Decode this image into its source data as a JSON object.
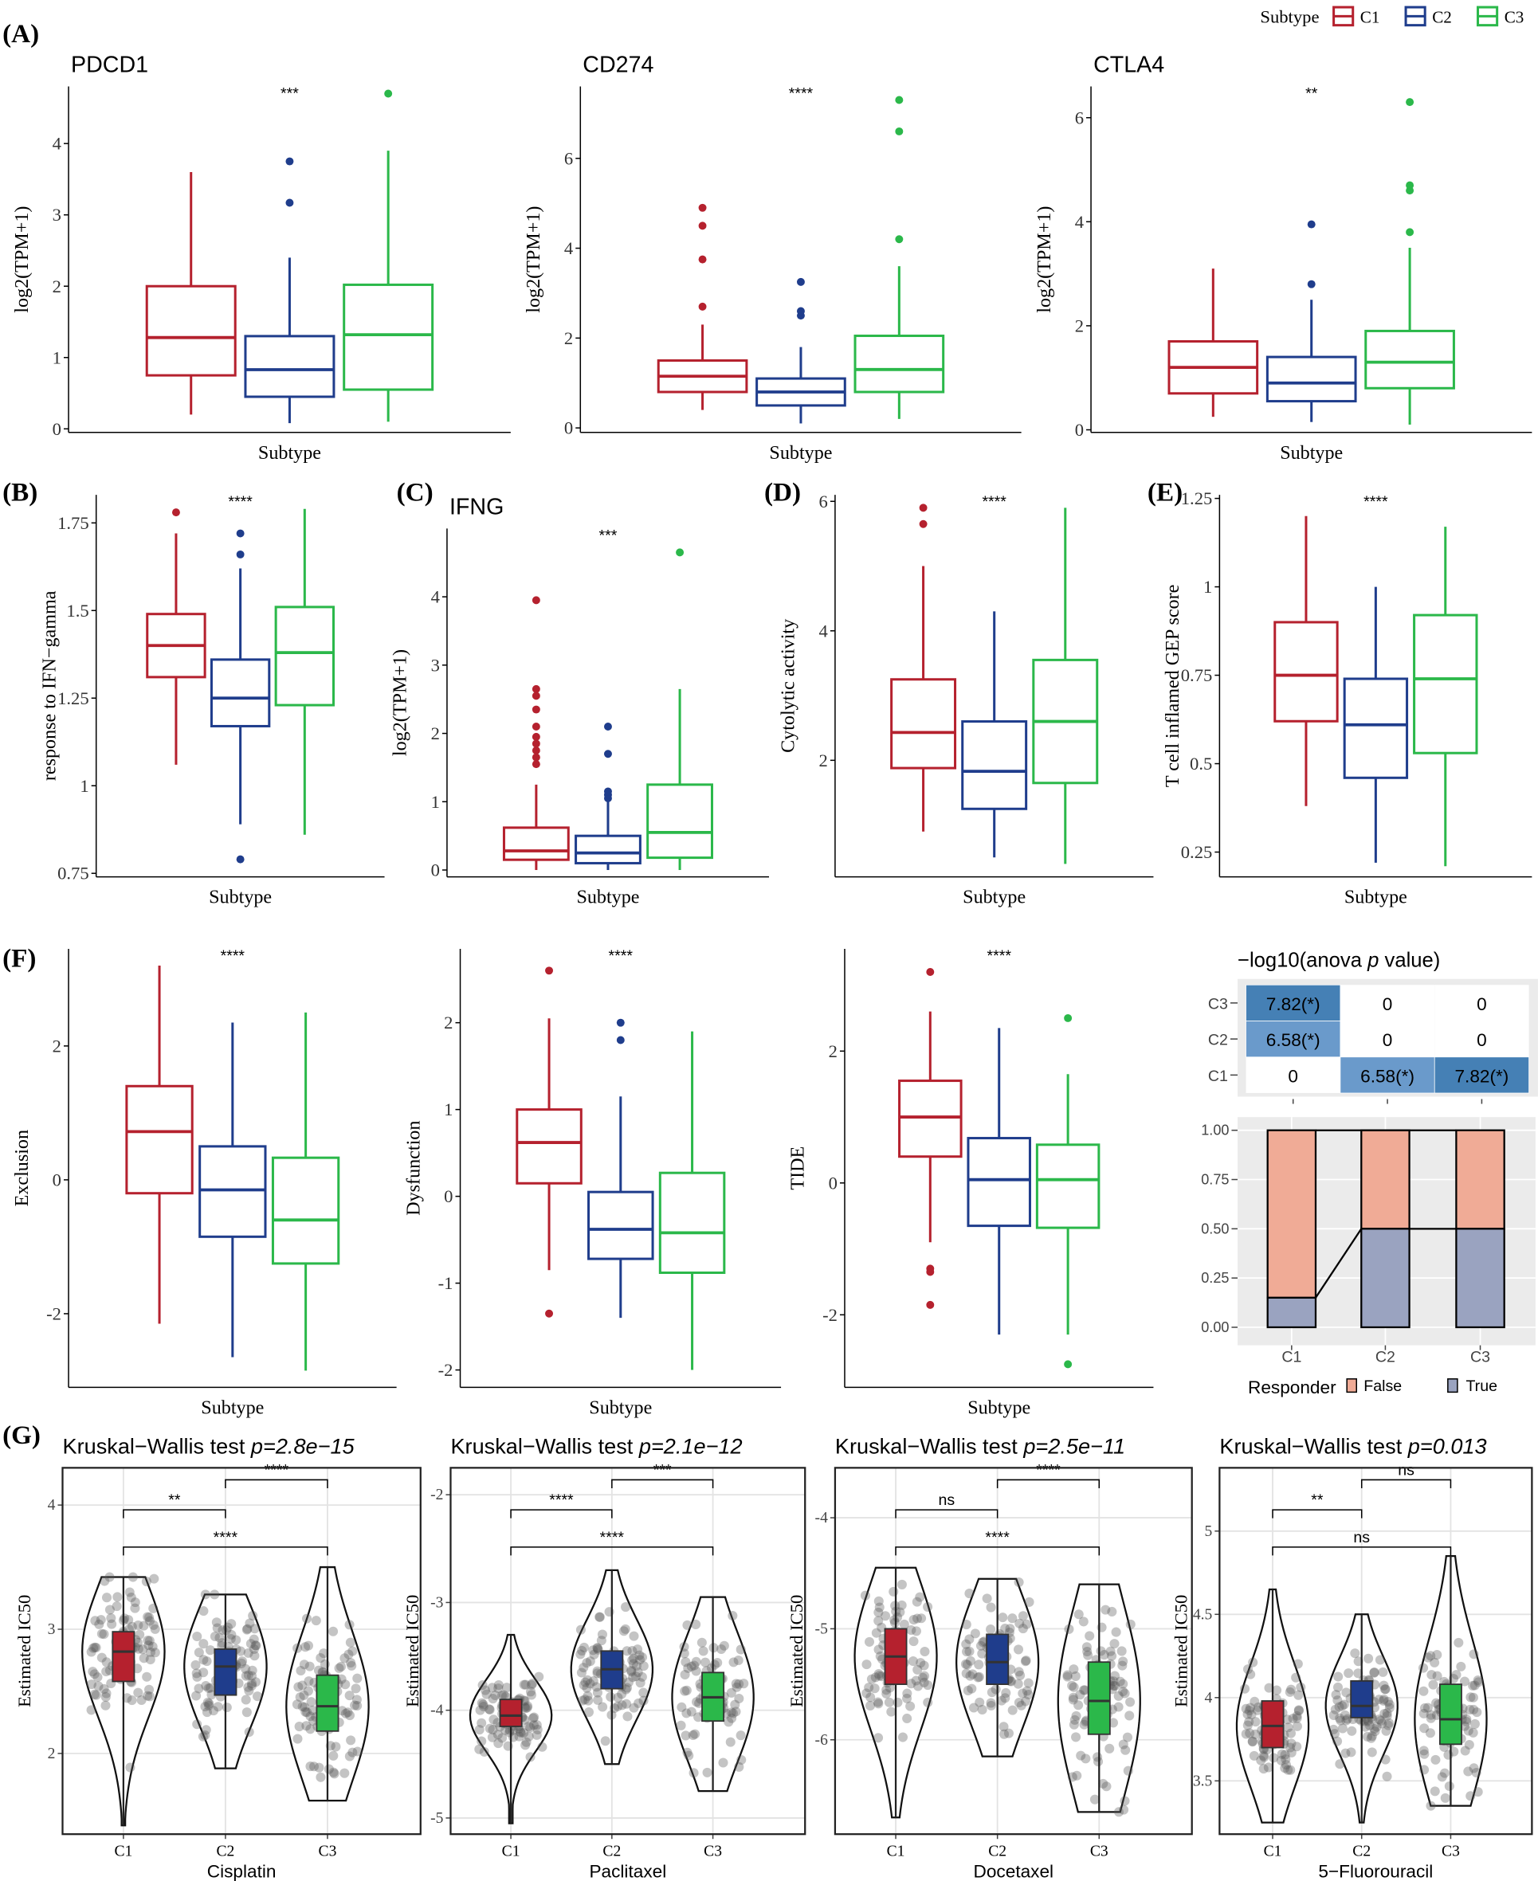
{
  "legend": {
    "title": "Subtype",
    "items": [
      "C1",
      "C2",
      "C3"
    ]
  },
  "colors": {
    "C1": "#b5212e",
    "C2": "#1f3d8c",
    "C3": "#2bb84a",
    "false": "#f0ab96",
    "true": "#9aa3c0",
    "heat_high": "#4580b5",
    "heat_mid": "#6a9acb"
  },
  "panel_labels": [
    "(A)",
    "(B)",
    "(C)",
    "(D)",
    "(E)",
    "(F)",
    "(G)"
  ],
  "chart_data": [
    {
      "id": "pdcd1",
      "type": "box",
      "title": "PDCD1",
      "xlabel": "Subtype",
      "ylabel": "log2(TPM+1)",
      "sig": "***",
      "ylim": [
        -0.05,
        4.8
      ],
      "ticks": [
        0,
        1,
        2,
        3,
        4
      ],
      "groups": [
        {
          "name": "C1",
          "lo": 0.2,
          "q1": 0.75,
          "med": 1.28,
          "q3": 2.0,
          "hi": 3.6,
          "out": []
        },
        {
          "name": "C2",
          "lo": 0.08,
          "q1": 0.45,
          "med": 0.83,
          "q3": 1.3,
          "hi": 2.4,
          "out": [
            3.17,
            3.75
          ]
        },
        {
          "name": "C3",
          "lo": 0.1,
          "q1": 0.55,
          "med": 1.32,
          "q3": 2.02,
          "hi": 3.9,
          "out": [
            4.7
          ]
        }
      ]
    },
    {
      "id": "cd274",
      "type": "box",
      "title": "CD274",
      "xlabel": "Subtype",
      "ylabel": "log2(TPM+1)",
      "sig": "****",
      "ylim": [
        -0.1,
        7.6
      ],
      "ticks": [
        0,
        2,
        4,
        6
      ],
      "groups": [
        {
          "name": "C1",
          "lo": 0.4,
          "q1": 0.8,
          "med": 1.15,
          "q3": 1.5,
          "hi": 2.3,
          "out": [
            2.7,
            3.75,
            4.5,
            4.9
          ]
        },
        {
          "name": "C2",
          "lo": 0.1,
          "q1": 0.5,
          "med": 0.8,
          "q3": 1.1,
          "hi": 1.8,
          "out": [
            2.5,
            2.6,
            3.25
          ]
        },
        {
          "name": "C3",
          "lo": 0.2,
          "q1": 0.8,
          "med": 1.3,
          "q3": 2.05,
          "hi": 3.6,
          "out": [
            4.2,
            6.6,
            7.3
          ]
        }
      ]
    },
    {
      "id": "ctla4",
      "type": "box",
      "title": "CTLA4",
      "xlabel": "Subtype",
      "ylabel": "log2(TPM+1)",
      "sig": "**",
      "ylim": [
        -0.05,
        6.6
      ],
      "ticks": [
        0,
        2,
        4,
        6
      ],
      "groups": [
        {
          "name": "C1",
          "lo": 0.25,
          "q1": 0.7,
          "med": 1.2,
          "q3": 1.7,
          "hi": 3.1,
          "out": []
        },
        {
          "name": "C2",
          "lo": 0.15,
          "q1": 0.55,
          "med": 0.9,
          "q3": 1.4,
          "hi": 2.5,
          "out": [
            2.8,
            3.95
          ]
        },
        {
          "name": "C3",
          "lo": 0.1,
          "q1": 0.8,
          "med": 1.3,
          "q3": 1.9,
          "hi": 3.5,
          "out": [
            3.8,
            4.6,
            4.7,
            6.3
          ]
        }
      ]
    },
    {
      "id": "ifn_response",
      "type": "box",
      "title": "",
      "xlabel": "Subtype",
      "ylabel": "response to IFN−gamma",
      "sig": "****",
      "ylim": [
        0.74,
        1.83
      ],
      "ticks": [
        0.75,
        1.0,
        1.25,
        1.5,
        1.75
      ],
      "groups": [
        {
          "name": "C1",
          "lo": 1.06,
          "q1": 1.31,
          "med": 1.4,
          "q3": 1.49,
          "hi": 1.72,
          "out": [
            1.78
          ]
        },
        {
          "name": "C2",
          "lo": 0.89,
          "q1": 1.17,
          "med": 1.25,
          "q3": 1.36,
          "hi": 1.62,
          "out": [
            1.66,
            1.72,
            0.79
          ]
        },
        {
          "name": "C3",
          "lo": 0.86,
          "q1": 1.23,
          "med": 1.38,
          "q3": 1.51,
          "hi": 1.79,
          "out": []
        }
      ]
    },
    {
      "id": "ifng",
      "type": "box",
      "title": "IFNG",
      "xlabel": "Subtype",
      "ylabel": "log2(TPM+1)",
      "sig": "***",
      "ylim": [
        -0.1,
        5.0
      ],
      "ticks": [
        0,
        1,
        2,
        3,
        4
      ],
      "groups": [
        {
          "name": "C1",
          "lo": 0,
          "q1": 0.15,
          "med": 0.28,
          "q3": 0.62,
          "hi": 1.25,
          "out": [
            1.55,
            1.65,
            1.75,
            1.85,
            1.95,
            2.1,
            2.35,
            2.55,
            2.65,
            3.95
          ]
        },
        {
          "name": "C2",
          "lo": 0,
          "q1": 0.1,
          "med": 0.25,
          "q3": 0.5,
          "hi": 1.0,
          "out": [
            1.05,
            1.1,
            1.15,
            1.7,
            2.1
          ]
        },
        {
          "name": "C3",
          "lo": 0,
          "q1": 0.18,
          "med": 0.55,
          "q3": 1.25,
          "hi": 2.65,
          "out": [
            4.65
          ]
        }
      ]
    },
    {
      "id": "cytolytic",
      "type": "box",
      "title": "",
      "xlabel": "Subtype",
      "ylabel": "Cytolytic activity",
      "sig": "****",
      "ylim": [
        0.2,
        6.1
      ],
      "ticks": [
        2,
        4,
        6
      ],
      "groups": [
        {
          "name": "C1",
          "lo": 0.9,
          "q1": 1.88,
          "med": 2.43,
          "q3": 3.25,
          "hi": 5.0,
          "out": [
            5.65,
            5.9
          ]
        },
        {
          "name": "C2",
          "lo": 0.5,
          "q1": 1.25,
          "med": 1.83,
          "q3": 2.6,
          "hi": 4.3,
          "out": []
        },
        {
          "name": "C3",
          "lo": 0.4,
          "q1": 1.65,
          "med": 2.6,
          "q3": 3.55,
          "hi": 5.9,
          "out": []
        }
      ]
    },
    {
      "id": "gep",
      "type": "box",
      "title": "",
      "xlabel": "Subtype",
      "ylabel": "T cell inflamed GEP score",
      "sig": "****",
      "ylim": [
        0.18,
        1.26
      ],
      "ticks": [
        0.25,
        0.5,
        0.75,
        1.0,
        1.25
      ],
      "groups": [
        {
          "name": "C1",
          "lo": 0.38,
          "q1": 0.62,
          "med": 0.75,
          "q3": 0.9,
          "hi": 1.2,
          "out": []
        },
        {
          "name": "C2",
          "lo": 0.22,
          "q1": 0.46,
          "med": 0.61,
          "q3": 0.74,
          "hi": 1.0,
          "out": []
        },
        {
          "name": "C3",
          "lo": 0.21,
          "q1": 0.53,
          "med": 0.74,
          "q3": 0.92,
          "hi": 1.17,
          "out": []
        }
      ]
    },
    {
      "id": "exclusion",
      "type": "box",
      "title": "",
      "xlabel": "Subtype",
      "ylabel": "Exclusion",
      "sig": "****",
      "ylim": [
        -3.1,
        3.45
      ],
      "ticks": [
        -2,
        0,
        2
      ],
      "groups": [
        {
          "name": "C1",
          "lo": -2.15,
          "q1": -0.2,
          "med": 0.72,
          "q3": 1.4,
          "hi": 3.2,
          "out": []
        },
        {
          "name": "C2",
          "lo": -2.65,
          "q1": -0.85,
          "med": -0.15,
          "q3": 0.5,
          "hi": 2.35,
          "out": []
        },
        {
          "name": "C3",
          "lo": -2.85,
          "q1": -1.25,
          "med": -0.6,
          "q3": 0.33,
          "hi": 2.5,
          "out": []
        }
      ]
    },
    {
      "id": "dysfunction",
      "type": "box",
      "title": "",
      "xlabel": "Subtype",
      "ylabel": "Dysfunction",
      "sig": "****",
      "ylim": [
        -2.2,
        2.85
      ],
      "ticks": [
        -2,
        -1,
        0,
        1,
        2
      ],
      "groups": [
        {
          "name": "C1",
          "lo": -0.85,
          "q1": 0.15,
          "med": 0.62,
          "q3": 1.0,
          "hi": 2.05,
          "out": [
            2.6,
            -1.35
          ]
        },
        {
          "name": "C2",
          "lo": -1.4,
          "q1": -0.72,
          "med": -0.38,
          "q3": 0.05,
          "hi": 1.15,
          "out": [
            1.8,
            2.0
          ]
        },
        {
          "name": "C3",
          "lo": -2.0,
          "q1": -0.88,
          "med": -0.42,
          "q3": 0.27,
          "hi": 1.9,
          "out": []
        }
      ]
    },
    {
      "id": "tide",
      "type": "box",
      "title": "",
      "xlabel": "Subtype",
      "ylabel": "TIDE",
      "sig": "****",
      "ylim": [
        -3.1,
        3.55
      ],
      "ticks": [
        -2,
        0,
        2
      ],
      "groups": [
        {
          "name": "C1",
          "lo": -0.9,
          "q1": 0.4,
          "med": 1.0,
          "q3": 1.55,
          "hi": 2.6,
          "out": [
            3.2,
            -1.3,
            -1.35,
            -1.85
          ]
        },
        {
          "name": "C2",
          "lo": -2.3,
          "q1": -0.65,
          "med": 0.05,
          "q3": 0.68,
          "hi": 2.35,
          "out": []
        },
        {
          "name": "C3",
          "lo": -2.3,
          "q1": -0.68,
          "med": 0.05,
          "q3": 0.58,
          "hi": 1.65,
          "out": [
            2.5,
            -2.75
          ]
        }
      ]
    },
    {
      "id": "anova_heatmap",
      "type": "heatmap",
      "title_prefix": "−log10(anova ",
      "title_p": "p",
      "title_suffix": " value)",
      "rows": [
        "C3",
        "C2",
        "C1"
      ],
      "cols": [
        "C1",
        "C2",
        "C3"
      ],
      "values": [
        [
          "7.82(*)",
          "0",
          "0"
        ],
        [
          "6.58(*)",
          "0",
          "0"
        ],
        [
          "0",
          "6.58(*)",
          "7.82(*)"
        ]
      ],
      "numeric": [
        [
          7.82,
          0,
          0
        ],
        [
          6.58,
          0,
          0
        ],
        [
          0,
          6.58,
          7.82
        ]
      ]
    },
    {
      "id": "responder",
      "type": "bar",
      "stacked": true,
      "categories": [
        "C1",
        "C2",
        "C3"
      ],
      "ylim": [
        0,
        1
      ],
      "ticks": [
        "0.00",
        "0.25",
        "0.50",
        "0.75",
        "1.00"
      ],
      "legend_title": "Responder",
      "series": [
        {
          "name": "False",
          "values": [
            0.85,
            0.5,
            0.5
          ]
        },
        {
          "name": "True",
          "values": [
            0.15,
            0.5,
            0.5
          ]
        }
      ]
    },
    {
      "id": "cisplatin",
      "type": "violin",
      "test": "Kruskal−Wallis test ",
      "p": "p=2.8e−15",
      "xlabel": "Cisplatin",
      "ylabel": "Estimated IC50",
      "ylim": [
        1.35,
        4.3
      ],
      "ticks": [
        2,
        3,
        4
      ],
      "brackets": [
        {
          "from": "C2",
          "to": "C3",
          "label": "****"
        },
        {
          "from": "C1",
          "to": "C2",
          "label": "**"
        },
        {
          "from": "C1",
          "to": "C3",
          "label": "****"
        }
      ],
      "groups": [
        {
          "name": "C1",
          "lo": 1.42,
          "q1": 2.58,
          "med": 2.82,
          "q3": 2.98,
          "hi": 3.42
        },
        {
          "name": "C2",
          "lo": 1.88,
          "q1": 2.47,
          "med": 2.7,
          "q3": 2.84,
          "hi": 3.28
        },
        {
          "name": "C3",
          "lo": 1.62,
          "q1": 2.18,
          "med": 2.38,
          "q3": 2.63,
          "hi": 3.5
        }
      ]
    },
    {
      "id": "paclitaxel",
      "type": "violin",
      "test": "Kruskal−Wallis test ",
      "p": "p=2.1e−12",
      "xlabel": "Paclitaxel",
      "ylabel": "Estimated IC50",
      "ylim": [
        -5.15,
        -1.75
      ],
      "ticks": [
        -2,
        -3,
        -4,
        -5
      ],
      "brackets": [
        {
          "from": "C2",
          "to": "C3",
          "label": "***"
        },
        {
          "from": "C1",
          "to": "C2",
          "label": "****"
        },
        {
          "from": "C1",
          "to": "C3",
          "label": "****"
        }
      ],
      "groups": [
        {
          "name": "C1",
          "lo": -5.05,
          "q1": -4.15,
          "med": -4.05,
          "q3": -3.9,
          "hi": -3.3
        },
        {
          "name": "C2",
          "lo": -4.5,
          "q1": -3.8,
          "med": -3.62,
          "q3": -3.45,
          "hi": -2.7
        },
        {
          "name": "C3",
          "lo": -4.75,
          "q1": -4.1,
          "med": -3.88,
          "q3": -3.65,
          "hi": -2.95
        }
      ]
    },
    {
      "id": "docetaxel",
      "type": "violin",
      "test": "Kruskal−Wallis test ",
      "p": "p=2.5e−11",
      "xlabel": "Docetaxel",
      "ylabel": "Estimated IC50",
      "ylim": [
        -6.85,
        -3.55
      ],
      "ticks": [
        -4,
        -5,
        -6
      ],
      "brackets": [
        {
          "from": "C2",
          "to": "C3",
          "label": "****"
        },
        {
          "from": "C1",
          "to": "C2",
          "label": "ns"
        },
        {
          "from": "C1",
          "to": "C3",
          "label": "****"
        }
      ],
      "groups": [
        {
          "name": "C1",
          "lo": -6.7,
          "q1": -5.5,
          "med": -5.25,
          "q3": -5.0,
          "hi": -4.45
        },
        {
          "name": "C2",
          "lo": -6.15,
          "q1": -5.5,
          "med": -5.3,
          "q3": -5.05,
          "hi": -4.55
        },
        {
          "name": "C3",
          "lo": -6.65,
          "q1": -5.95,
          "med": -5.65,
          "q3": -5.3,
          "hi": -4.6
        }
      ]
    },
    {
      "id": "fluorouracil",
      "type": "violin",
      "test": "Kruskal−Wallis test ",
      "p": "p=0.013",
      "xlabel": "5−Fluorouracil",
      "ylabel": "Estimated IC50",
      "ylim": [
        3.18,
        5.38
      ],
      "ticks": [
        3.5,
        4.0,
        4.5,
        5.0
      ],
      "brackets": [
        {
          "from": "C2",
          "to": "C3",
          "label": "ns"
        },
        {
          "from": "C1",
          "to": "C2",
          "label": "**"
        },
        {
          "from": "C1",
          "to": "C3",
          "label": "ns"
        }
      ],
      "groups": [
        {
          "name": "C1",
          "lo": 3.25,
          "q1": 3.7,
          "med": 3.83,
          "q3": 3.98,
          "hi": 4.65
        },
        {
          "name": "C2",
          "lo": 3.25,
          "q1": 3.88,
          "med": 3.95,
          "q3": 4.1,
          "hi": 4.5
        },
        {
          "name": "C3",
          "lo": 3.35,
          "q1": 3.72,
          "med": 3.87,
          "q3": 4.08,
          "hi": 4.85
        }
      ]
    }
  ]
}
